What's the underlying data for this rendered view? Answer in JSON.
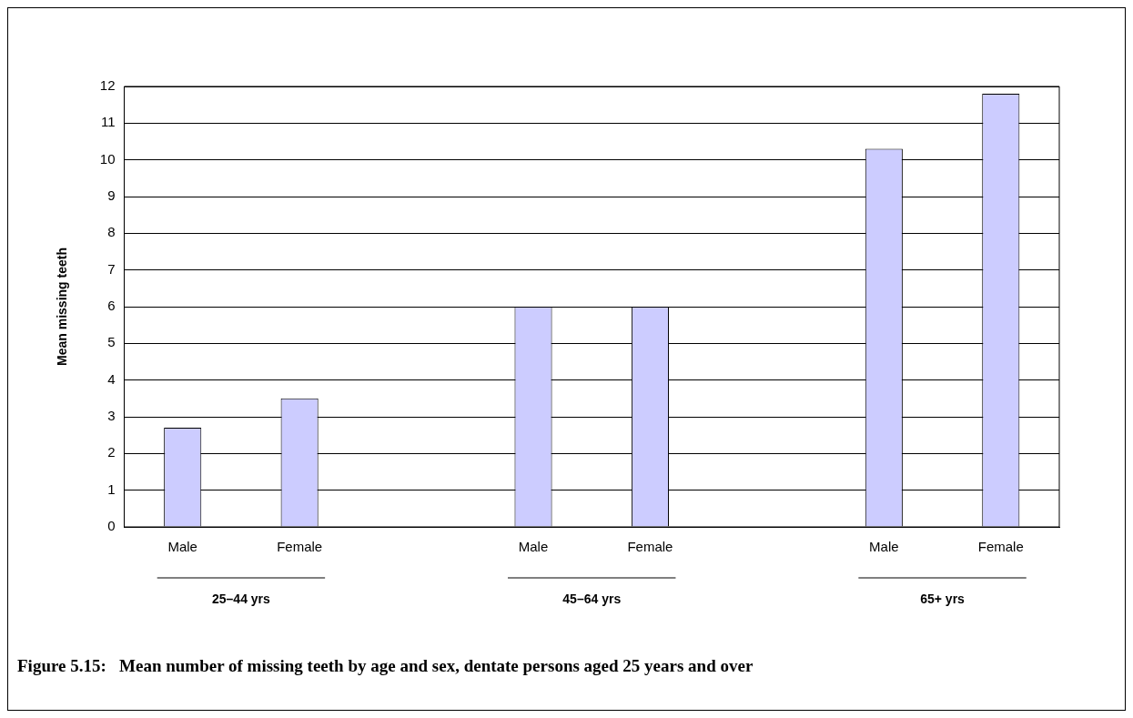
{
  "chart_data": {
    "type": "bar",
    "title": "Figure 5.15:   Mean number of missing teeth by age and sex, dentate persons aged 25 years and over",
    "ylabel": "Mean missing teeth",
    "categories": [
      "Male",
      "Female",
      null,
      "Male",
      "Female",
      null,
      "Male",
      "Female"
    ],
    "values": [
      2.7,
      3.5,
      null,
      6.0,
      6.0,
      null,
      10.3,
      11.8
    ],
    "color": "#ccccff",
    "ylim": [
      0,
      12
    ],
    "yticks": [
      0,
      1,
      2,
      3,
      4,
      5,
      6,
      7,
      8,
      9,
      10,
      11,
      12
    ],
    "grid": "y",
    "legend": false,
    "annotations": [
      "25–44 yrs",
      "45–64 yrs",
      "65+ yrs"
    ]
  }
}
